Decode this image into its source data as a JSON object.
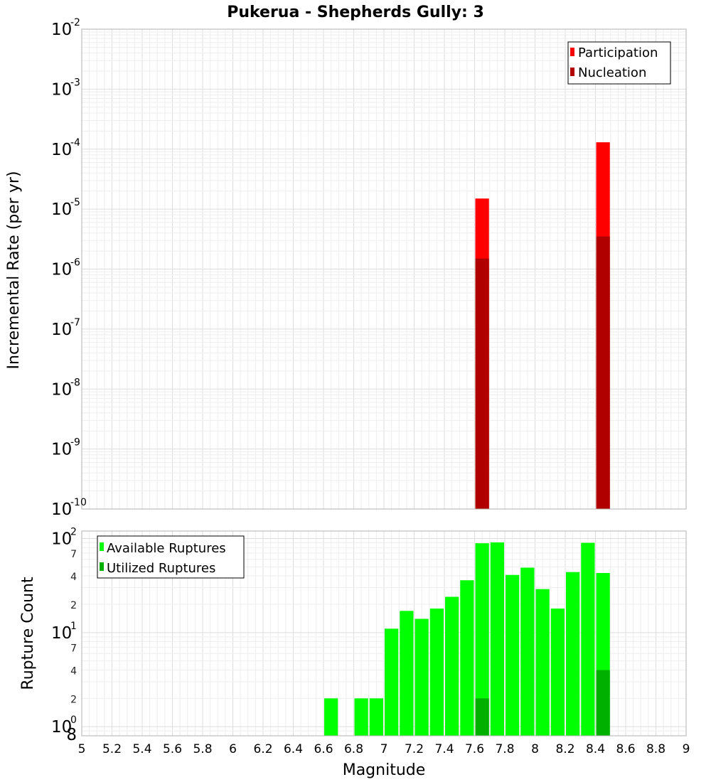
{
  "chart_data": [
    {
      "type": "bar",
      "title": "Pukerua - Shepherds Gully: 3",
      "xlabel": "Magnitude",
      "ylabel": "Incremental Rate (per yr)",
      "yscale": "log",
      "xlim": [
        5,
        9
      ],
      "ylim": [
        1e-10,
        0.01
      ],
      "y_major_ticks": [
        {
          "base": "10",
          "exp": "-10",
          "value": 1e-10
        },
        {
          "base": "10",
          "exp": "-9",
          "value": 1e-09
        },
        {
          "base": "10",
          "exp": "-8",
          "value": 1e-08
        },
        {
          "base": "10",
          "exp": "-7",
          "value": 1e-07
        },
        {
          "base": "10",
          "exp": "-6",
          "value": 1e-06
        },
        {
          "base": "10",
          "exp": "-5",
          "value": 1e-05
        },
        {
          "base": "10",
          "exp": "-4",
          "value": 0.0001
        },
        {
          "base": "10",
          "exp": "-3",
          "value": 0.001
        },
        {
          "base": "10",
          "exp": "-2",
          "value": 0.01
        }
      ],
      "bin_width": 0.1,
      "legend_position": "top-right",
      "series": [
        {
          "name": "Participation",
          "color": "#ff0000",
          "x": [
            7.65,
            8.45
          ],
          "values": [
            1.5e-05,
            0.00013
          ]
        },
        {
          "name": "Nucleation",
          "color": "#b00000",
          "x": [
            7.65,
            8.45
          ],
          "values": [
            1.5e-06,
            3.5e-06
          ]
        }
      ]
    },
    {
      "type": "bar",
      "title": "",
      "xlabel": "Magnitude",
      "ylabel": "Rupture Count",
      "yscale": "log",
      "xlim": [
        5,
        9
      ],
      "ylim": [
        0.8,
        120
      ],
      "y_major_ticks": [
        {
          "base": "10",
          "exp": "0",
          "value": 1
        },
        {
          "base": "10",
          "exp": "1",
          "value": 10
        },
        {
          "base": "10",
          "exp": "2",
          "value": 100
        }
      ],
      "y_minor_ticks": [
        {
          "label": "8",
          "value": 0.8
        },
        {
          "label": "2",
          "value": 2
        },
        {
          "label": "4",
          "value": 4
        },
        {
          "label": "7",
          "value": 7
        },
        {
          "label": "2",
          "value": 20
        },
        {
          "label": "4",
          "value": 40
        },
        {
          "label": "7",
          "value": 70
        }
      ],
      "bin_width": 0.1,
      "legend_position": "top-left",
      "series": [
        {
          "name": "Available Ruptures",
          "color": "#00ff00",
          "x": [
            6.65,
            6.85,
            6.95,
            7.05,
            7.15,
            7.25,
            7.35,
            7.45,
            7.55,
            7.65,
            7.75,
            7.85,
            7.95,
            8.05,
            8.15,
            8.25,
            8.35,
            8.45
          ],
          "values": [
            2,
            2,
            2,
            11,
            17,
            14,
            18,
            24,
            36,
            89,
            91,
            41,
            49,
            29,
            18,
            44,
            90,
            43
          ]
        },
        {
          "name": "Utilized Ruptures",
          "color": "#00b000",
          "x": [
            7.65,
            8.45
          ],
          "values": [
            2,
            4
          ]
        }
      ]
    }
  ],
  "x_ticks": [
    "5",
    "5.2",
    "5.4",
    "5.6",
    "5.8",
    "6",
    "6.2",
    "6.4",
    "6.6",
    "6.8",
    "7",
    "7.2",
    "7.4",
    "7.6",
    "7.8",
    "8",
    "8.2",
    "8.4",
    "8.6",
    "8.8",
    "9"
  ]
}
